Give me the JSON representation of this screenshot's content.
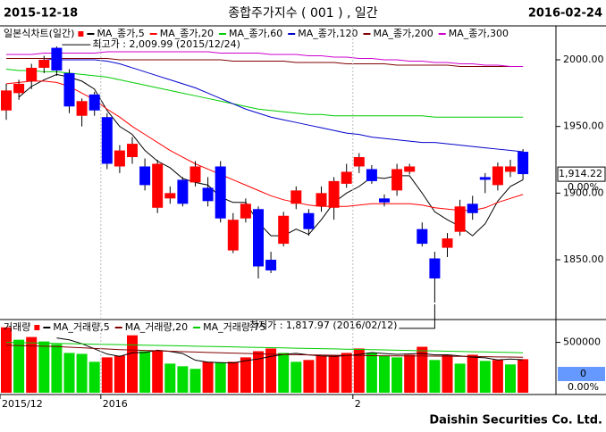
{
  "header": {
    "start_date": "2015-12-18",
    "title": "종합주가지수 ( 001 ) , 일간",
    "end_date": "2016-02-24"
  },
  "footer": "Daishin Securities Co. Ltd.",
  "chart_data": [
    {
      "type": "candlestick",
      "legend_title": "일본식차트(일간)",
      "up_color": "#ff0000",
      "down_color": "#0000ff",
      "open": [
        1962,
        1975,
        1984,
        1994,
        2009,
        1990,
        1958,
        1974,
        1957,
        1920,
        1927,
        1920,
        1889,
        1896,
        1910,
        1908,
        1904,
        1920,
        1857,
        1881,
        1888,
        1850,
        1862,
        1892,
        1885,
        1890,
        1889,
        1907,
        1920,
        1918,
        1896,
        1902,
        1916,
        1873,
        1851,
        1859,
        1871,
        1892,
        1912,
        1906,
        1916,
        1931
      ],
      "high": [
        1982,
        1985,
        1997,
        2003,
        2009.99,
        1993,
        1971,
        1976,
        1960,
        1936,
        1942,
        1926,
        1925,
        1905,
        1912,
        1924,
        1912,
        1924,
        1885,
        1896,
        1890,
        1856,
        1886,
        1905,
        1888,
        1905,
        1912,
        1922,
        1930,
        1921,
        1899,
        1922,
        1922,
        1878,
        1856,
        1870,
        1895,
        1898,
        1915,
        1923,
        1925,
        1933
      ],
      "low": [
        1955,
        1970,
        1978,
        1990,
        1988,
        1960,
        1950,
        1958,
        1918,
        1915,
        1922,
        1902,
        1885,
        1892,
        1890,
        1905,
        1890,
        1878,
        1855,
        1878,
        1836,
        1840,
        1860,
        1888,
        1868,
        1886,
        1880,
        1904,
        1915,
        1907,
        1890,
        1898,
        1914,
        1860,
        1817.97,
        1852,
        1868,
        1880,
        1900,
        1902,
        1912,
        1910
      ],
      "close": [
        1977,
        1982,
        1994,
        2000,
        1992,
        1965,
        1969,
        1962,
        1922,
        1932,
        1937,
        1906,
        1922,
        1900,
        1892,
        1920,
        1894,
        1881,
        1880,
        1892,
        1845,
        1842,
        1883,
        1902,
        1873,
        1900,
        1909,
        1916,
        1927,
        1909,
        1893,
        1918,
        1920,
        1862,
        1836,
        1866,
        1890,
        1885,
        1910,
        1920,
        1920,
        1914.22
      ],
      "series": [
        {
          "name": "MA_종가,5",
          "color": "#000000",
          "values": [
            null,
            1972,
            1980,
            1985,
            1989,
            1987,
            1984,
            1978,
            1962,
            1950,
            1944,
            1932,
            1924,
            1919,
            1911,
            1908,
            1906,
            1897,
            1893,
            1893,
            1878,
            1868,
            1868,
            1873,
            1869,
            1880,
            1893,
            1900,
            1905,
            1912,
            1911,
            1913,
            1913,
            1900,
            1886,
            1880,
            1875,
            1868,
            1877,
            1894,
            1905,
            1910
          ]
        },
        {
          "name": "MA_종가,20",
          "color": "#ff0000",
          "values": [
            1982,
            1983,
            1984,
            1984,
            1983,
            1980,
            1975,
            1970,
            1963,
            1957,
            1950,
            1944,
            1938,
            1932,
            1927,
            1922,
            1918,
            1914,
            1910,
            1906,
            1902,
            1898,
            1895,
            1893,
            1891,
            1890,
            1890,
            1890,
            1891,
            1892,
            1892,
            1892,
            1892,
            1891,
            1889,
            1888,
            1887,
            1887,
            1889,
            1893,
            1896,
            1899
          ]
        },
        {
          "name": "MA_종가,60",
          "color": "#00cc00",
          "values": [
            1993,
            1992,
            1992,
            1991,
            1991,
            1990,
            1989,
            1988,
            1987,
            1985,
            1983,
            1981,
            1979,
            1977,
            1975,
            1973,
            1971,
            1969,
            1967,
            1965,
            1963,
            1962,
            1961,
            1960,
            1959,
            1959,
            1958,
            1958,
            1958,
            1958,
            1958,
            1958,
            1958,
            1958,
            1957,
            1957,
            1957,
            1957,
            1957,
            1957,
            1957,
            1957
          ]
        },
        {
          "name": "MA_종가,120",
          "color": "#0000cc",
          "values": [
            2001,
            2001,
            2001,
            2001,
            2000,
            2000,
            2000,
            2000,
            1999,
            1997,
            1994,
            1991,
            1988,
            1985,
            1982,
            1979,
            1975,
            1971,
            1967,
            1963,
            1960,
            1957,
            1955,
            1953,
            1951,
            1949,
            1947,
            1945,
            1944,
            1942,
            1941,
            1940,
            1939,
            1938,
            1938,
            1937,
            1936,
            1935,
            1934,
            1933,
            1932,
            1931
          ]
        },
        {
          "name": "MA_종가,200",
          "color": "#800000",
          "values": [
            2001,
            2001,
            2001,
            2001,
            2001,
            2001,
            2001,
            2001,
            2001,
            2000,
            2000,
            2000,
            2000,
            2000,
            2000,
            2000,
            2000,
            2000,
            1999,
            1999,
            1999,
            1999,
            1999,
            1998,
            1998,
            1998,
            1998,
            1997,
            1997,
            1997,
            1997,
            1996,
            1996,
            1996,
            1996,
            1996,
            1995,
            1995,
            1995,
            1995,
            1995,
            1995
          ]
        },
        {
          "name": "MA_종가,300",
          "color": "#cc00cc",
          "values": [
            2004,
            2004,
            2004,
            2005,
            2005,
            2005,
            2005,
            2005,
            2006,
            2006,
            2006,
            2006,
            2006,
            2006,
            2006,
            2006,
            2006,
            2005,
            2005,
            2005,
            2005,
            2004,
            2004,
            2004,
            2003,
            2003,
            2002,
            2002,
            2001,
            2001,
            2000,
            2000,
            1999,
            1999,
            1998,
            1998,
            1997,
            1997,
            1996,
            1996,
            1995,
            1995
          ]
        }
      ],
      "ylim": [
        1806.5,
        2024.1
      ],
      "yticks": [
        {
          "value": 1850,
          "label": "1850.00"
        },
        {
          "value": 1900,
          "label": "1900.00"
        },
        {
          "value": 1950,
          "label": "1950.00"
        },
        {
          "value": 2000,
          "label": "2000.00"
        }
      ],
      "annotations": [
        {
          "text": "최고가 : 2,009.99 (2015/12/24)",
          "color": "#ff0000"
        },
        {
          "text": "최저가 : 1,817.97 (2016/02/12)",
          "color": "#0000ff"
        }
      ],
      "last_label": "1,914.22",
      "change_label": "0.00%"
    },
    {
      "type": "bar",
      "legend_title": "거래량",
      "up_color": "#ff0000",
      "down_color": "#00dd00",
      "categories": [
        "2015/12",
        null,
        null,
        null,
        null,
        null,
        null,
        null,
        "2016",
        null,
        null,
        null,
        null,
        null,
        null,
        null,
        null,
        null,
        null,
        null,
        null,
        null,
        null,
        null,
        null,
        null,
        null,
        null,
        "2",
        null,
        null,
        null,
        null,
        null,
        null,
        null,
        null,
        null,
        null,
        null,
        null,
        null
      ],
      "values": [
        649000,
        526000,
        553000,
        509000,
        482000,
        395000,
        386000,
        307000,
        351000,
        368000,
        570000,
        412000,
        412000,
        289000,
        263000,
        237000,
        307000,
        298000,
        307000,
        351000,
        412000,
        439000,
        395000,
        307000,
        325000,
        368000,
        368000,
        395000,
        439000,
        395000,
        368000,
        351000,
        377000,
        456000,
        325000,
        377000,
        289000,
        377000,
        316000,
        325000,
        281000,
        333000
      ],
      "series": [
        {
          "name": "MA_거래량,5",
          "color": "#000000",
          "values": [
            null,
            null,
            null,
            null,
            544000,
            525000,
            487000,
            436000,
            384000,
            361000,
            396000,
            400000,
            422000,
            410000,
            389000,
            323000,
            304000,
            299000,
            296000,
            318000,
            335000,
            361000,
            380000,
            391000,
            376000,
            366000,
            361000,
            369000,
            380000,
            399000,
            389000,
            381000,
            385000,
            390000,
            375000,
            377000,
            365000,
            353000,
            347000,
            326000,
            335000,
            327000
          ]
        },
        {
          "name": "MA_거래량,20",
          "color": "#800000",
          "values": [
            470000,
            468000,
            465000,
            462000,
            458000,
            452000,
            446000,
            440000,
            434000,
            428000,
            424000,
            420000,
            416000,
            412000,
            408000,
            404000,
            400000,
            396000,
            393000,
            390000,
            386000,
            383000,
            380000,
            378000,
            376000,
            374000,
            372000,
            370000,
            369000,
            368000,
            367000,
            366000,
            365000,
            364000,
            363000,
            362000,
            361000,
            360000,
            358000,
            356000,
            354000,
            352000
          ]
        },
        {
          "name": "MA_거래량,75",
          "color": "#00cc00",
          "values": [
            500000,
            497000,
            495000,
            492000,
            490000,
            487000,
            485000,
            482000,
            480000,
            477000,
            475000,
            472000,
            470000,
            467000,
            465000,
            462000,
            460000,
            457000,
            455000,
            452000,
            450000,
            447000,
            445000,
            442000,
            440000,
            437000,
            435000,
            432000,
            430000,
            427000,
            425000,
            422000,
            420000,
            417000,
            415000,
            412000,
            410000,
            407000,
            405000,
            402000,
            400000,
            397000
          ]
        }
      ],
      "ylim": [
        0,
        700000
      ],
      "yticks": [
        500000
      ],
      "last_label": "0",
      "change_label": "0.00%"
    }
  ]
}
